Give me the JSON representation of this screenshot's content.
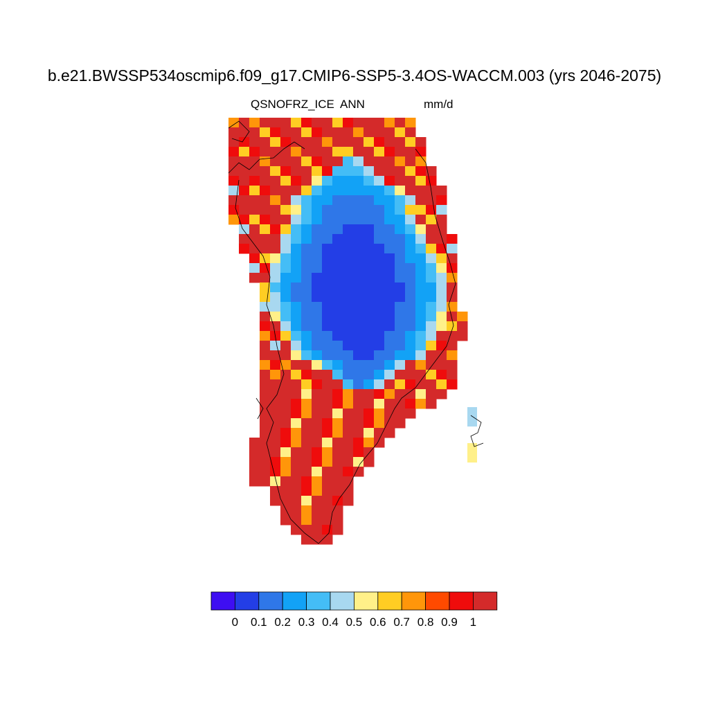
{
  "title": "b.e21.BWSSP534oscmip6.f09_g17.CMIP6-SSP5-3.4OS-WACCM.003 (yrs 2046-2075)",
  "left_label": "QSNOFRZ_ICE",
  "center_label": "ANN",
  "right_label": "mm/d",
  "colorbar": {
    "colors": [
      "#3e0ef2",
      "#233ee6",
      "#2f77e8",
      "#12a2f6",
      "#44bdf6",
      "#a8d8f0",
      "#fff089",
      "#ffcd23",
      "#ff960a",
      "#ff4a00",
      "#ef0c0c",
      "#d42a2a"
    ],
    "labels": [
      "0",
      "0.1",
      "0.2",
      "0.3",
      "0.4",
      "0.5",
      "0.6",
      "0.7",
      "0.8",
      "0.9",
      "1"
    ]
  }
}
